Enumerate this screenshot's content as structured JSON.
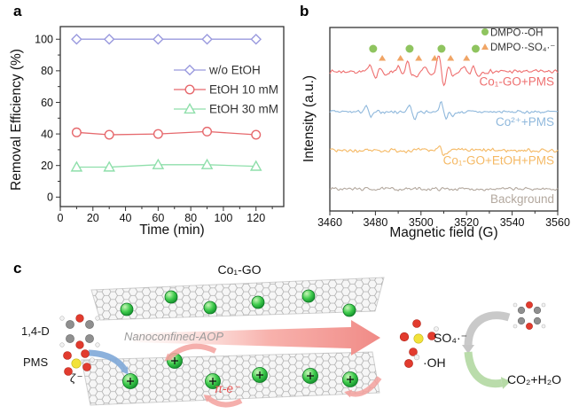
{
  "panels": {
    "a": {
      "label": "a"
    },
    "b": {
      "label": "b"
    },
    "c": {
      "label": "c",
      "title": "Co₁-GO",
      "reactant_1": "1,4-D",
      "reactant_2": "PMS",
      "zeta_label": "ζ⁻",
      "process_label": "Nanoconfined-AOP",
      "electron_label": "π-e⁻",
      "radical_1": "SO₄·⁻",
      "radical_2": "·OH",
      "product": "CO₂+H₂O"
    }
  },
  "chart_data": [
    {
      "id": "removal_efficiency",
      "type": "line",
      "title": "",
      "xlabel": "Time (min)",
      "ylabel": "Removal Efficiency (%)",
      "x": [
        10,
        30,
        60,
        90,
        120
      ],
      "xticks": [
        0,
        20,
        40,
        60,
        80,
        100,
        120
      ],
      "yticks": [
        0,
        20,
        40,
        60,
        80,
        100
      ],
      "xlim": [
        0,
        137
      ],
      "ylim": [
        -6,
        108
      ],
      "grid": false,
      "legend_position": "middle-right",
      "series": [
        {
          "name": "w/o EtOH",
          "marker": "diamond",
          "color": "#9a9ade",
          "values": [
            100,
            100,
            100,
            100,
            100
          ]
        },
        {
          "name": "EtOH 10 mM",
          "marker": "circle",
          "color": "#e6696d",
          "values": [
            41,
            39.5,
            40,
            41.5,
            39.5
          ]
        },
        {
          "name": "EtOH 30 mM",
          "marker": "triangle",
          "color": "#8fdfab",
          "values": [
            19,
            19,
            20.5,
            20.5,
            19.5
          ]
        }
      ]
    },
    {
      "id": "epr_spectra",
      "type": "line",
      "title": "",
      "xlabel": "Magnetic field (G)",
      "ylabel": "Intensity (a.u.)",
      "xlim": [
        3460,
        3560
      ],
      "xticks": [
        3460,
        3480,
        3500,
        3520,
        3540,
        3560
      ],
      "grid": false,
      "series": [
        {
          "name": "Co₁-GO+PMS",
          "color": "#ee6f6f",
          "offset": 0.76,
          "noise": 0.1,
          "peaks": [
            [
              3479,
              0.25
            ],
            [
              3483,
              0.18
            ],
            [
              3491,
              0.2
            ],
            [
              3495,
              0.4
            ],
            [
              3497,
              0.18
            ],
            [
              3503,
              0.15
            ],
            [
              3509,
              0.7
            ],
            [
              3513,
              0.22
            ],
            [
              3520,
              0.15
            ],
            [
              3524,
              0.2
            ]
          ]
        },
        {
          "name": "Co²⁺+PMS",
          "color": "#8fb8dc",
          "offset": 0.54,
          "noise": 0.08,
          "peaks": [
            [
              3477,
              0.22
            ],
            [
              3496,
              0.3
            ],
            [
              3510,
              0.45
            ],
            [
              3513,
              0.18
            ]
          ]
        },
        {
          "name": "Co₁-GO+EtOH+PMS",
          "color": "#f5b964",
          "offset": 0.33,
          "noise": 0.1,
          "peaks": [
            [
              3509,
              0.18
            ]
          ]
        },
        {
          "name": "Background",
          "color": "#b3a89e",
          "offset": 0.12,
          "noise": 0.08,
          "peaks": []
        }
      ],
      "adduct_markers": {
        "dmpo_oh": {
          "label": "DMPO·-OH",
          "marker": "circle",
          "color": "#8fc45f",
          "positions": [
            3479,
            3495,
            3509,
            3524
          ]
        },
        "dmpo_so4": {
          "label": "DMPO·-SO₄·⁻",
          "marker": "triangle",
          "color": "#f0a566",
          "positions": [
            3483,
            3491,
            3499,
            3506,
            3513,
            3520
          ]
        }
      }
    }
  ]
}
